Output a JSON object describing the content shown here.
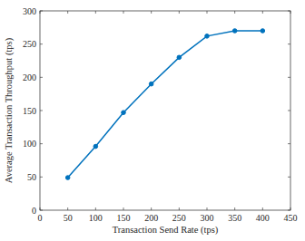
{
  "chart_data": {
    "type": "line",
    "x_label": "Transaction Send Rate (tps)",
    "y_label": "Average Transaction Throughput (tps)",
    "x": [
      50,
      100,
      150,
      200,
      250,
      300,
      350,
      400
    ],
    "values": [
      49,
      96,
      147,
      190,
      230,
      262,
      270,
      270
    ],
    "color": "#0072bd",
    "marker": "circle",
    "line_style": "solid",
    "xlim": [
      0,
      450
    ],
    "xticks": [
      0,
      50,
      100,
      150,
      200,
      250,
      300,
      350,
      400,
      450
    ],
    "ylim": [
      0,
      300
    ],
    "yticks": [
      0,
      50,
      100,
      150,
      200,
      250,
      300
    ],
    "grid": false
  }
}
